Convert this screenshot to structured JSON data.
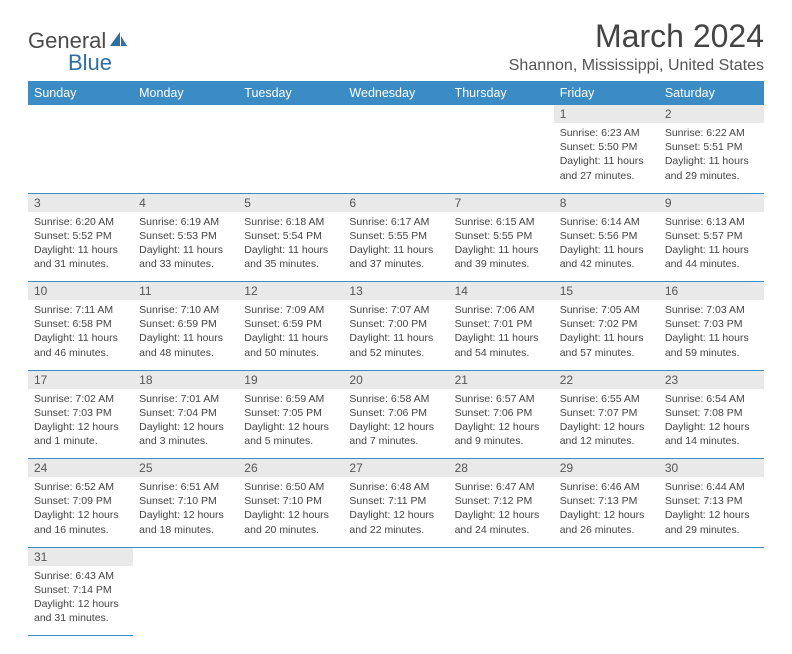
{
  "logo": {
    "text1": "General",
    "text2": "Blue"
  },
  "title": "March 2024",
  "location": "Shannon, Mississippi, United States",
  "colors": {
    "header_bg": "#3b8bc4",
    "header_text": "#ffffff",
    "daynum_bg": "#e9e9e9",
    "border": "#3b8bc4",
    "logo_gray": "#4a4a4a",
    "logo_blue": "#2f6fa7"
  },
  "dayHeaders": [
    "Sunday",
    "Monday",
    "Tuesday",
    "Wednesday",
    "Thursday",
    "Friday",
    "Saturday"
  ],
  "weeks": [
    [
      null,
      null,
      null,
      null,
      null,
      {
        "n": "1",
        "sr": "6:23 AM",
        "ss": "5:50 PM",
        "dl": "11 hours and 27 minutes."
      },
      {
        "n": "2",
        "sr": "6:22 AM",
        "ss": "5:51 PM",
        "dl": "11 hours and 29 minutes."
      }
    ],
    [
      {
        "n": "3",
        "sr": "6:20 AM",
        "ss": "5:52 PM",
        "dl": "11 hours and 31 minutes."
      },
      {
        "n": "4",
        "sr": "6:19 AM",
        "ss": "5:53 PM",
        "dl": "11 hours and 33 minutes."
      },
      {
        "n": "5",
        "sr": "6:18 AM",
        "ss": "5:54 PM",
        "dl": "11 hours and 35 minutes."
      },
      {
        "n": "6",
        "sr": "6:17 AM",
        "ss": "5:55 PM",
        "dl": "11 hours and 37 minutes."
      },
      {
        "n": "7",
        "sr": "6:15 AM",
        "ss": "5:55 PM",
        "dl": "11 hours and 39 minutes."
      },
      {
        "n": "8",
        "sr": "6:14 AM",
        "ss": "5:56 PM",
        "dl": "11 hours and 42 minutes."
      },
      {
        "n": "9",
        "sr": "6:13 AM",
        "ss": "5:57 PM",
        "dl": "11 hours and 44 minutes."
      }
    ],
    [
      {
        "n": "10",
        "sr": "7:11 AM",
        "ss": "6:58 PM",
        "dl": "11 hours and 46 minutes."
      },
      {
        "n": "11",
        "sr": "7:10 AM",
        "ss": "6:59 PM",
        "dl": "11 hours and 48 minutes."
      },
      {
        "n": "12",
        "sr": "7:09 AM",
        "ss": "6:59 PM",
        "dl": "11 hours and 50 minutes."
      },
      {
        "n": "13",
        "sr": "7:07 AM",
        "ss": "7:00 PM",
        "dl": "11 hours and 52 minutes."
      },
      {
        "n": "14",
        "sr": "7:06 AM",
        "ss": "7:01 PM",
        "dl": "11 hours and 54 minutes."
      },
      {
        "n": "15",
        "sr": "7:05 AM",
        "ss": "7:02 PM",
        "dl": "11 hours and 57 minutes."
      },
      {
        "n": "16",
        "sr": "7:03 AM",
        "ss": "7:03 PM",
        "dl": "11 hours and 59 minutes."
      }
    ],
    [
      {
        "n": "17",
        "sr": "7:02 AM",
        "ss": "7:03 PM",
        "dl": "12 hours and 1 minute."
      },
      {
        "n": "18",
        "sr": "7:01 AM",
        "ss": "7:04 PM",
        "dl": "12 hours and 3 minutes."
      },
      {
        "n": "19",
        "sr": "6:59 AM",
        "ss": "7:05 PM",
        "dl": "12 hours and 5 minutes."
      },
      {
        "n": "20",
        "sr": "6:58 AM",
        "ss": "7:06 PM",
        "dl": "12 hours and 7 minutes."
      },
      {
        "n": "21",
        "sr": "6:57 AM",
        "ss": "7:06 PM",
        "dl": "12 hours and 9 minutes."
      },
      {
        "n": "22",
        "sr": "6:55 AM",
        "ss": "7:07 PM",
        "dl": "12 hours and 12 minutes."
      },
      {
        "n": "23",
        "sr": "6:54 AM",
        "ss": "7:08 PM",
        "dl": "12 hours and 14 minutes."
      }
    ],
    [
      {
        "n": "24",
        "sr": "6:52 AM",
        "ss": "7:09 PM",
        "dl": "12 hours and 16 minutes."
      },
      {
        "n": "25",
        "sr": "6:51 AM",
        "ss": "7:10 PM",
        "dl": "12 hours and 18 minutes."
      },
      {
        "n": "26",
        "sr": "6:50 AM",
        "ss": "7:10 PM",
        "dl": "12 hours and 20 minutes."
      },
      {
        "n": "27",
        "sr": "6:48 AM",
        "ss": "7:11 PM",
        "dl": "12 hours and 22 minutes."
      },
      {
        "n": "28",
        "sr": "6:47 AM",
        "ss": "7:12 PM",
        "dl": "12 hours and 24 minutes."
      },
      {
        "n": "29",
        "sr": "6:46 AM",
        "ss": "7:13 PM",
        "dl": "12 hours and 26 minutes."
      },
      {
        "n": "30",
        "sr": "6:44 AM",
        "ss": "7:13 PM",
        "dl": "12 hours and 29 minutes."
      }
    ],
    [
      {
        "n": "31",
        "sr": "6:43 AM",
        "ss": "7:14 PM",
        "dl": "12 hours and 31 minutes."
      },
      null,
      null,
      null,
      null,
      null,
      null
    ]
  ]
}
